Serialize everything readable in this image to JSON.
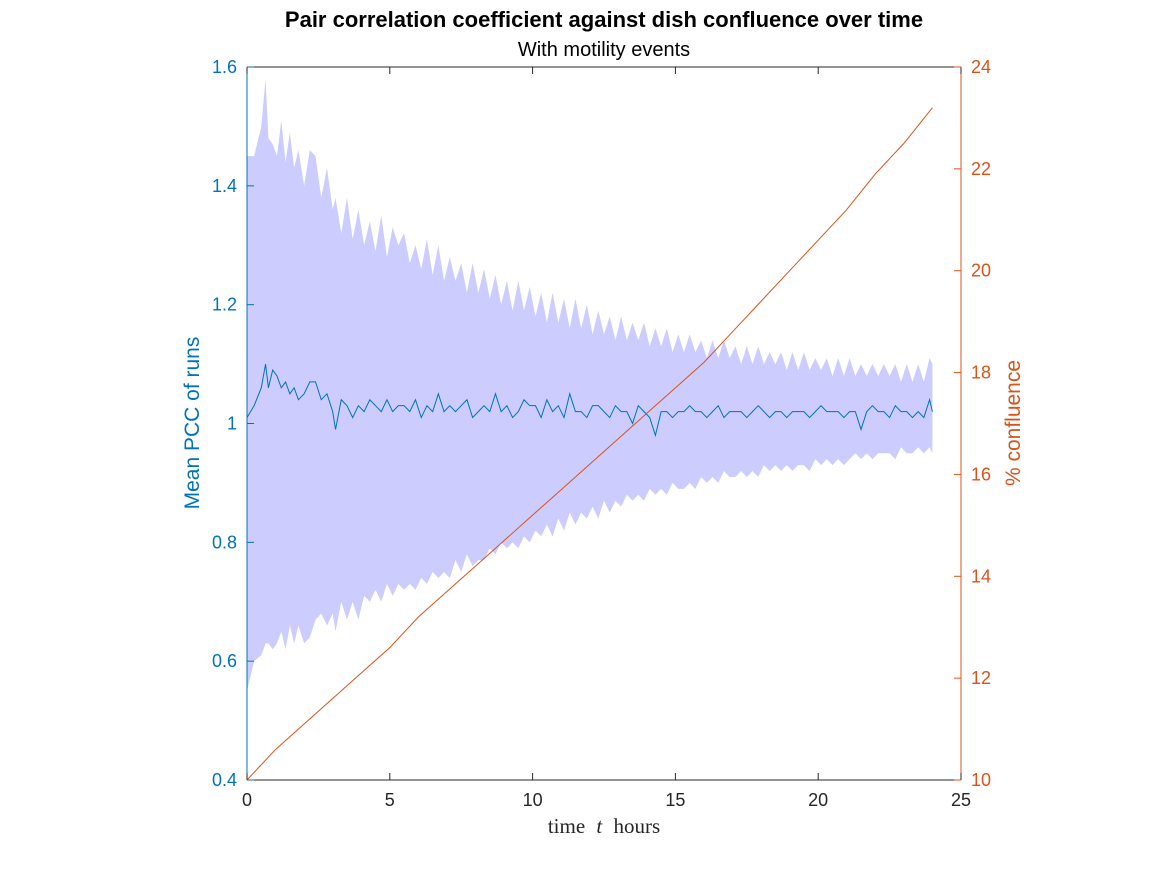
{
  "chart_data": {
    "type": "line",
    "title": "Pair correlation coefficient against dish confluence over time",
    "subtitle": "With motility events",
    "xlabel_parts": [
      "time",
      "t",
      "hours"
    ],
    "xlim": [
      0,
      25
    ],
    "x_ticks": [
      "0",
      "5",
      "10",
      "15",
      "20",
      "25"
    ],
    "y_left": {
      "label": "Mean PCC of runs",
      "lim": [
        0.4,
        1.6
      ],
      "ticks": [
        "0.4",
        "0.6",
        "0.8",
        "1",
        "1.2",
        "1.4",
        "1.6"
      ],
      "color": "#0072BD"
    },
    "y_right": {
      "label": "% confluence",
      "lim": [
        10,
        24
      ],
      "ticks": [
        "10",
        "12",
        "14",
        "16",
        "18",
        "20",
        "22",
        "24"
      ],
      "color": "#D95319"
    },
    "band_color": "#CCCCFF",
    "series": [
      {
        "axis": "left",
        "x": [
          0,
          0.25,
          0.5,
          0.65,
          0.75,
          0.9,
          1.05,
          1.2,
          1.35,
          1.5,
          1.65,
          1.8,
          2.0,
          2.2,
          2.4,
          2.6,
          2.8,
          3.0,
          3.1,
          3.3,
          3.5,
          3.7,
          3.9,
          4.1,
          4.3,
          4.5,
          4.7,
          4.9,
          5.1,
          5.3,
          5.5,
          5.7,
          5.9,
          6.1,
          6.3,
          6.5,
          6.7,
          6.9,
          7.1,
          7.3,
          7.5,
          7.7,
          7.9,
          8.1,
          8.3,
          8.5,
          8.7,
          8.9,
          9.1,
          9.3,
          9.5,
          9.7,
          9.9,
          10.1,
          10.3,
          10.5,
          10.7,
          10.9,
          11.1,
          11.3,
          11.5,
          11.7,
          11.9,
          12.1,
          12.3,
          12.5,
          12.7,
          12.9,
          13.1,
          13.3,
          13.5,
          13.7,
          13.9,
          14.1,
          14.3,
          14.5,
          14.7,
          14.9,
          15.1,
          15.3,
          15.5,
          15.7,
          15.9,
          16.1,
          16.3,
          16.5,
          16.7,
          16.9,
          17.1,
          17.3,
          17.5,
          17.7,
          17.9,
          18.1,
          18.3,
          18.5,
          18.7,
          18.9,
          19.1,
          19.3,
          19.5,
          19.7,
          19.9,
          20.1,
          20.3,
          20.5,
          20.7,
          20.9,
          21.1,
          21.3,
          21.5,
          21.7,
          21.9,
          22.1,
          22.3,
          22.5,
          22.7,
          22.9,
          23.1,
          23.3,
          23.5,
          23.7,
          23.9,
          24.0
        ],
        "y": [
          1.01,
          1.03,
          1.06,
          1.1,
          1.06,
          1.09,
          1.08,
          1.06,
          1.07,
          1.05,
          1.06,
          1.04,
          1.05,
          1.07,
          1.07,
          1.04,
          1.05,
          1.02,
          0.99,
          1.04,
          1.03,
          1.01,
          1.03,
          1.02,
          1.04,
          1.03,
          1.02,
          1.04,
          1.02,
          1.03,
          1.03,
          1.02,
          1.04,
          1.01,
          1.03,
          1.02,
          1.05,
          1.02,
          1.03,
          1.02,
          1.03,
          1.04,
          1.01,
          1.02,
          1.03,
          1.02,
          1.05,
          1.02,
          1.03,
          1.01,
          1.02,
          1.04,
          1.03,
          1.03,
          1.01,
          1.04,
          1.02,
          1.03,
          1.01,
          1.05,
          1.02,
          1.02,
          1.01,
          1.03,
          1.03,
          1.02,
          1.01,
          1.03,
          1.02,
          1.02,
          1.0,
          1.03,
          1.02,
          1.01,
          0.98,
          1.02,
          1.02,
          1.01,
          1.02,
          1.02,
          1.03,
          1.02,
          1.02,
          1.01,
          1.02,
          1.03,
          1.01,
          1.02,
          1.02,
          1.02,
          1.01,
          1.02,
          1.03,
          1.02,
          1.01,
          1.02,
          1.02,
          1.01,
          1.02,
          1.02,
          1.02,
          1.01,
          1.02,
          1.03,
          1.02,
          1.02,
          1.02,
          1.01,
          1.02,
          1.02,
          0.99,
          1.02,
          1.03,
          1.02,
          1.02,
          1.01,
          1.03,
          1.02,
          1.02,
          1.01,
          1.02,
          1.01,
          1.04,
          1.02
        ],
        "lower": [
          0.55,
          0.6,
          0.61,
          0.63,
          0.63,
          0.62,
          0.63,
          0.65,
          0.62,
          0.66,
          0.63,
          0.66,
          0.63,
          0.64,
          0.67,
          0.68,
          0.66,
          0.68,
          0.65,
          0.7,
          0.67,
          0.7,
          0.67,
          0.71,
          0.7,
          0.72,
          0.7,
          0.73,
          0.71,
          0.73,
          0.72,
          0.73,
          0.72,
          0.74,
          0.73,
          0.75,
          0.74,
          0.75,
          0.74,
          0.77,
          0.75,
          0.78,
          0.76,
          0.77,
          0.77,
          0.79,
          0.78,
          0.8,
          0.79,
          0.8,
          0.79,
          0.81,
          0.8,
          0.82,
          0.81,
          0.83,
          0.81,
          0.84,
          0.82,
          0.85,
          0.83,
          0.85,
          0.84,
          0.86,
          0.84,
          0.87,
          0.85,
          0.87,
          0.86,
          0.88,
          0.87,
          0.88,
          0.87,
          0.89,
          0.88,
          0.89,
          0.88,
          0.9,
          0.89,
          0.89,
          0.9,
          0.89,
          0.91,
          0.9,
          0.91,
          0.9,
          0.92,
          0.91,
          0.91,
          0.92,
          0.91,
          0.92,
          0.91,
          0.93,
          0.92,
          0.93,
          0.92,
          0.93,
          0.92,
          0.93,
          0.93,
          0.92,
          0.94,
          0.93,
          0.94,
          0.93,
          0.94,
          0.93,
          0.94,
          0.95,
          0.94,
          0.95,
          0.94,
          0.95,
          0.95,
          0.95,
          0.94,
          0.96,
          0.95,
          0.95,
          0.96,
          0.95,
          0.96,
          0.95
        ],
        "upper": [
          1.45,
          1.45,
          1.5,
          1.58,
          1.48,
          1.47,
          1.45,
          1.51,
          1.44,
          1.49,
          1.43,
          1.46,
          1.4,
          1.46,
          1.45,
          1.38,
          1.43,
          1.36,
          1.38,
          1.32,
          1.38,
          1.31,
          1.36,
          1.3,
          1.34,
          1.29,
          1.35,
          1.28,
          1.33,
          1.3,
          1.32,
          1.27,
          1.3,
          1.26,
          1.31,
          1.25,
          1.3,
          1.24,
          1.28,
          1.24,
          1.27,
          1.22,
          1.27,
          1.22,
          1.26,
          1.21,
          1.25,
          1.2,
          1.24,
          1.19,
          1.24,
          1.19,
          1.23,
          1.18,
          1.22,
          1.17,
          1.22,
          1.17,
          1.21,
          1.16,
          1.21,
          1.16,
          1.2,
          1.15,
          1.19,
          1.15,
          1.18,
          1.14,
          1.18,
          1.14,
          1.17,
          1.14,
          1.17,
          1.13,
          1.16,
          1.13,
          1.16,
          1.12,
          1.15,
          1.12,
          1.15,
          1.12,
          1.14,
          1.11,
          1.14,
          1.11,
          1.14,
          1.11,
          1.13,
          1.1,
          1.13,
          1.1,
          1.13,
          1.1,
          1.12,
          1.1,
          1.12,
          1.09,
          1.12,
          1.09,
          1.12,
          1.09,
          1.11,
          1.09,
          1.11,
          1.08,
          1.11,
          1.08,
          1.11,
          1.08,
          1.1,
          1.08,
          1.1,
          1.08,
          1.1,
          1.08,
          1.1,
          1.07,
          1.1,
          1.07,
          1.1,
          1.07,
          1.11,
          1.1
        ]
      },
      {
        "axis": "right",
        "x": [
          0,
          1,
          2,
          3,
          4,
          5,
          6,
          7,
          8,
          9,
          10,
          11,
          12,
          13,
          14,
          15,
          16,
          17,
          18,
          19,
          20,
          21,
          22,
          23,
          24
        ],
        "y": [
          10.0,
          10.6,
          11.1,
          11.6,
          12.1,
          12.6,
          13.2,
          13.7,
          14.2,
          14.7,
          15.2,
          15.7,
          16.2,
          16.7,
          17.2,
          17.7,
          18.2,
          18.8,
          19.4,
          20.0,
          20.6,
          21.2,
          21.9,
          22.5,
          23.2
        ]
      }
    ],
    "grid": false,
    "legend": "none"
  }
}
